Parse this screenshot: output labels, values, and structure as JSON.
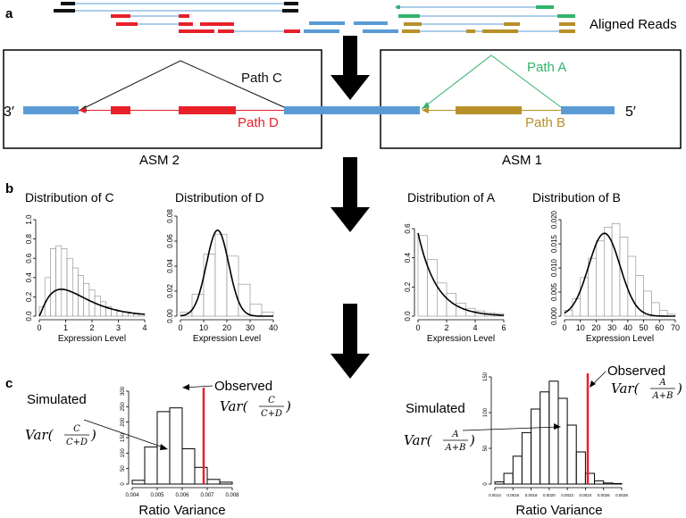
{
  "panels": {
    "a": "a",
    "b": "b",
    "c": "c"
  },
  "aligned_reads": "Aligned Reads",
  "gene": {
    "three_prime": "3′",
    "five_prime": "5′",
    "asm2": "ASM 2",
    "asm1": "ASM 1",
    "paths": {
      "A": "Path A",
      "B": "Path B",
      "C": "Path C",
      "D": "Path D"
    }
  },
  "colors": {
    "blue": "#5b9bd5",
    "red": "#e8202a",
    "green": "#33b36b",
    "gold": "#b8902a",
    "black": "#111111"
  },
  "distributions": [
    {
      "title": "Distribution of C",
      "xlabel": "Expression Level",
      "xticks": [
        "0",
        "1",
        "2",
        "3",
        "4"
      ],
      "yticks": [
        "0.0",
        "0.2",
        "0.4",
        "0.6",
        "0.8",
        "1.0"
      ]
    },
    {
      "title": "Distribution of D",
      "xlabel": "Expression Level",
      "xticks": [
        "0",
        "10",
        "20",
        "30",
        "40"
      ],
      "yticks": [
        "0.00",
        "0.02",
        "0.04",
        "0.06",
        "0.08"
      ]
    },
    {
      "title": "Distribution of A",
      "xlabel": "Expression Level",
      "xticks": [
        "0",
        "2",
        "4",
        "6"
      ],
      "yticks": [
        "0.0",
        "0.2",
        "0.4",
        "0.6"
      ]
    },
    {
      "title": "Distribution of B",
      "xlabel": "Expression Level",
      "xticks": [
        "0",
        "10",
        "20",
        "30",
        "40",
        "50",
        "60",
        "70"
      ],
      "yticks": [
        "0.000",
        "0.005",
        "0.010",
        "0.015",
        "0.020"
      ]
    }
  ],
  "variance": [
    {
      "simulated": "Simulated",
      "observed": "Observed",
      "var_prefix": "Var(",
      "num": "C",
      "den": "C+D",
      "xlabel": "Ratio Variance",
      "xticks": [
        "0.004",
        "0.005",
        "0.006",
        "0.007",
        "0.008"
      ],
      "yticks": [
        "0",
        "50",
        "100",
        "150",
        "200",
        "250",
        "300"
      ]
    },
    {
      "simulated": "Simulated",
      "observed": "Observed",
      "var_prefix": "Var(",
      "num": "A",
      "den": "A+B",
      "xlabel": "Ratio Variance",
      "xticks": [
        "0.0014",
        "0.0016",
        "0.0018",
        "0.0020",
        "0.0022",
        "0.0024",
        "0.0026",
        "0.0028"
      ],
      "yticks": [
        "0",
        "50",
        "100",
        "150"
      ]
    }
  ]
}
